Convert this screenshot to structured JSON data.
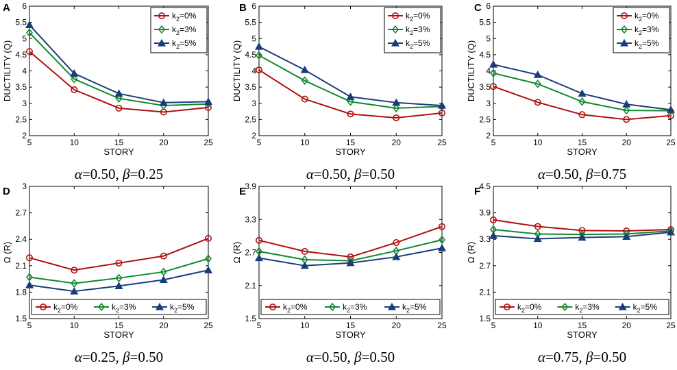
{
  "figure": {
    "series_colors": [
      "#b01010",
      "#108a30",
      "#1a3d7a"
    ],
    "series_markers": [
      "circle",
      "diamond",
      "triangle"
    ]
  },
  "chart_data": [
    {
      "type": "line",
      "panel": "A",
      "caption": "α=0.50, β=0.25",
      "title": "",
      "xlabel": "STORY",
      "ylabel": "DUCTILITY (Q)",
      "x": [
        5,
        10,
        15,
        20,
        25
      ],
      "xlim": [
        5,
        25
      ],
      "ylim": [
        2,
        6
      ],
      "xticks": [
        "5",
        "10",
        "15",
        "20",
        "25"
      ],
      "yticks": [
        "2",
        "2.5",
        "3",
        "3.5",
        "4",
        "4.5",
        "5",
        "5.5",
        "6"
      ],
      "yticks_values": [
        2,
        2.5,
        3,
        3.5,
        4,
        4.5,
        5,
        5.5,
        6
      ],
      "legend_position": "top-right",
      "series": [
        {
          "name": "k2=0%",
          "values": [
            4.6,
            3.42,
            2.85,
            2.73,
            2.87
          ]
        },
        {
          "name": "k2=3%",
          "values": [
            5.18,
            3.75,
            3.15,
            2.93,
            2.98
          ]
        },
        {
          "name": "k2=5%",
          "values": [
            5.42,
            3.92,
            3.3,
            3.02,
            3.05
          ]
        }
      ]
    },
    {
      "type": "line",
      "panel": "B",
      "caption": "α=0.50, β=0.50",
      "title": "",
      "xlabel": "STORY",
      "ylabel": "DUCTILITY (Q)",
      "x": [
        5,
        10,
        15,
        20,
        25
      ],
      "xlim": [
        5,
        25
      ],
      "ylim": [
        2,
        6
      ],
      "xticks": [
        "5",
        "10",
        "15",
        "20",
        "25"
      ],
      "yticks": [
        "2",
        "2.5",
        "3",
        "3.5",
        "4",
        "4.5",
        "5",
        "5.5",
        "6"
      ],
      "yticks_values": [
        2,
        2.5,
        3,
        3.5,
        4,
        4.5,
        5,
        5.5,
        6
      ],
      "legend_position": "top-right",
      "series": [
        {
          "name": "k2=0%",
          "values": [
            4.03,
            3.13,
            2.67,
            2.55,
            2.7
          ]
        },
        {
          "name": "k2=3%",
          "values": [
            4.48,
            3.7,
            3.05,
            2.85,
            2.9
          ]
        },
        {
          "name": "k2=5%",
          "values": [
            4.75,
            4.03,
            3.2,
            3.02,
            2.93
          ]
        }
      ]
    },
    {
      "type": "line",
      "panel": "C",
      "caption": "α=0.50, β=0.75",
      "title": "",
      "xlabel": "STORY",
      "ylabel": "DUCTILITY (Q)",
      "x": [
        5,
        10,
        15,
        20,
        25
      ],
      "xlim": [
        5,
        25
      ],
      "ylim": [
        2,
        6
      ],
      "xticks": [
        "5",
        "10",
        "15",
        "20",
        "25"
      ],
      "yticks": [
        "2",
        "2.5",
        "3",
        "3.5",
        "4",
        "4.5",
        "5",
        "5.5",
        "6"
      ],
      "yticks_values": [
        2,
        2.5,
        3,
        3.5,
        4,
        4.5,
        5,
        5.5,
        6
      ],
      "legend_position": "top-right",
      "series": [
        {
          "name": "k2=0%",
          "values": [
            3.52,
            3.03,
            2.65,
            2.5,
            2.62
          ]
        },
        {
          "name": "k2=3%",
          "values": [
            3.93,
            3.6,
            3.05,
            2.78,
            2.77
          ]
        },
        {
          "name": "k2=5%",
          "values": [
            4.2,
            3.88,
            3.3,
            2.97,
            2.8
          ]
        }
      ]
    },
    {
      "type": "line",
      "panel": "D",
      "caption": "α=0.25, β=0.50",
      "title": "",
      "xlabel": "STORY",
      "ylabel": "Ω (R)",
      "x": [
        5,
        10,
        15,
        20,
        25
      ],
      "xlim": [
        5,
        25
      ],
      "ylim": [
        1.5,
        3
      ],
      "xticks": [
        "5",
        "10",
        "15",
        "20",
        "25"
      ],
      "yticks": [
        "1.5",
        "1.8",
        "2.1",
        "2.4",
        "2.7",
        "3"
      ],
      "yticks_values": [
        1.5,
        1.8,
        2.1,
        2.4,
        2.7,
        3
      ],
      "legend_position": "bottom",
      "series": [
        {
          "name": "k2=0%",
          "values": [
            2.19,
            2.05,
            2.13,
            2.21,
            2.41
          ]
        },
        {
          "name": "k2=3%",
          "values": [
            1.97,
            1.9,
            1.96,
            2.03,
            2.18
          ]
        },
        {
          "name": "k2=5%",
          "values": [
            1.88,
            1.81,
            1.87,
            1.94,
            2.05
          ]
        }
      ]
    },
    {
      "type": "line",
      "panel": "E",
      "caption": "α=0.50, β=0.50",
      "title": "",
      "xlabel": "STORY",
      "ylabel": "Ω (R)",
      "x": [
        5,
        10,
        15,
        20,
        25
      ],
      "xlim": [
        5,
        25
      ],
      "ylim": [
        1.5,
        3.9
      ],
      "xticks": [
        "5",
        "10",
        "15",
        "20",
        "25"
      ],
      "yticks": [
        "1.5",
        "2.1",
        "2.7",
        "3.3",
        "3.9"
      ],
      "yticks_values": [
        1.5,
        2.1,
        2.7,
        3.3,
        3.9
      ],
      "legend_position": "bottom",
      "series": [
        {
          "name": "k2=0%",
          "values": [
            2.92,
            2.72,
            2.62,
            2.88,
            3.17
          ]
        },
        {
          "name": "k2=3%",
          "values": [
            2.72,
            2.57,
            2.55,
            2.73,
            2.93
          ]
        },
        {
          "name": "k2=5%",
          "values": [
            2.6,
            2.46,
            2.51,
            2.62,
            2.78
          ]
        }
      ]
    },
    {
      "type": "line",
      "panel": "F",
      "caption": "α=0.75, β=0.50",
      "title": "",
      "xlabel": "STORY",
      "ylabel": "Ω (R)",
      "x": [
        5,
        10,
        15,
        20,
        25
      ],
      "xlim": [
        5,
        25
      ],
      "ylim": [
        1.5,
        4.5
      ],
      "xticks": [
        "5",
        "10",
        "15",
        "20",
        "25"
      ],
      "yticks": [
        "1.5",
        "2.1",
        "2.7",
        "3.3",
        "3.9",
        "4.5"
      ],
      "yticks_values": [
        1.5,
        2.1,
        2.7,
        3.3,
        3.9,
        4.5
      ],
      "legend_position": "bottom",
      "series": [
        {
          "name": "k2=0%",
          "values": [
            3.74,
            3.59,
            3.5,
            3.49,
            3.52
          ]
        },
        {
          "name": "k2=3%",
          "values": [
            3.52,
            3.42,
            3.41,
            3.42,
            3.49
          ]
        },
        {
          "name": "k2=5%",
          "values": [
            3.38,
            3.31,
            3.34,
            3.36,
            3.46
          ]
        }
      ]
    }
  ]
}
